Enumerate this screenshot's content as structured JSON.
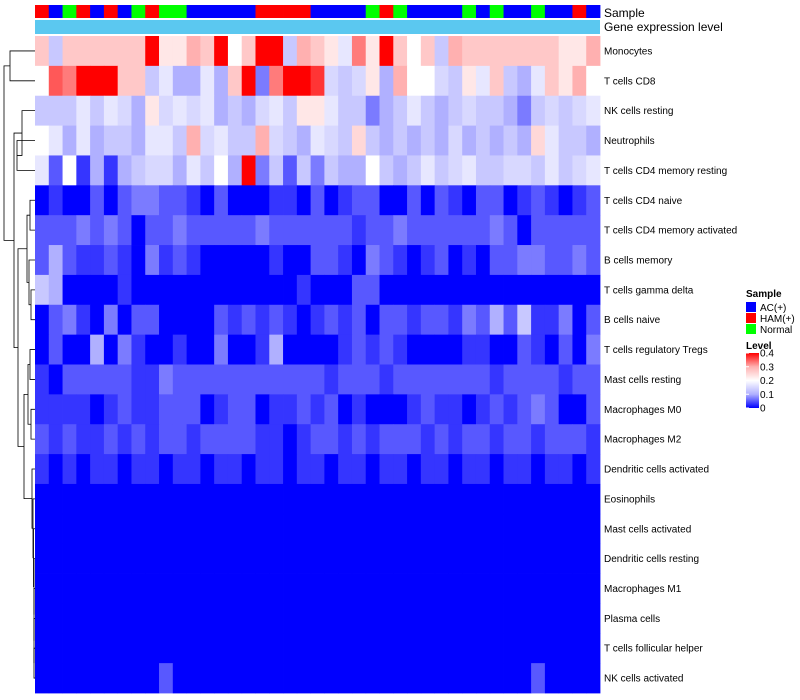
{
  "chart_data": {
    "type": "heatmap",
    "title": "",
    "column_annotation": {
      "label": "Sample",
      "groups": [
        "AC(+)",
        "HAM(+)",
        "Normal"
      ],
      "colors": {
        "AC(+)": "#0000ff",
        "HAM(+)": "#ff0000",
        "Normal": "#00ff00"
      },
      "values": [
        "HAM(+)",
        "AC(+)",
        "Normal",
        "HAM(+)",
        "AC(+)",
        "HAM(+)",
        "AC(+)",
        "Normal",
        "HAM(+)",
        "Normal",
        "Normal",
        "AC(+)",
        "AC(+)",
        "AC(+)",
        "AC(+)",
        "AC(+)",
        "HAM(+)",
        "HAM(+)",
        "HAM(+)",
        "HAM(+)",
        "AC(+)",
        "AC(+)",
        "AC(+)",
        "AC(+)",
        "Normal",
        "HAM(+)",
        "Normal",
        "AC(+)",
        "AC(+)",
        "AC(+)",
        "AC(+)",
        "Normal",
        "AC(+)",
        "Normal",
        "AC(+)",
        "AC(+)",
        "Normal",
        "AC(+)",
        "AC(+)",
        "HAM(+)",
        "AC(+)"
      ]
    },
    "gene_track_label": "Gene expression level",
    "gene_track_color": "#5bc8f0",
    "rows": [
      "Monocytes",
      "T cells CD8",
      "NK cells resting",
      "Neutrophils",
      "T cells CD4 memory resting",
      "T cells CD4 naive",
      "T cells CD4 memory activated",
      "B cells memory",
      "T cells gamma delta",
      "B cells naive",
      "T cells regulatory  Tregs",
      "Mast cells resting",
      "Macrophages M0",
      "Macrophages M2",
      "Dendritic cells activated",
      "Eosinophils",
      "Mast cells activated",
      "Dendritic cells resting",
      "Macrophages M1",
      "Plasma cells",
      "T cells follicular helper",
      "NK cells activated"
    ],
    "values": [
      [
        0.27,
        0.13,
        0.27,
        0.27,
        0.27,
        0.27,
        0.27,
        0.27,
        0.4,
        0.23,
        0.23,
        0.3,
        0.27,
        0.4,
        0.2,
        0.27,
        0.4,
        0.4,
        0.13,
        0.3,
        0.27,
        0.23,
        0.17,
        0.33,
        0.23,
        0.4,
        0.27,
        0.2,
        0.27,
        0.13,
        0.3,
        0.27,
        0.27,
        0.27,
        0.27,
        0.27,
        0.27,
        0.27,
        0.23,
        0.23,
        0.3
      ],
      [
        0.2,
        0.35,
        0.33,
        0.4,
        0.4,
        0.4,
        0.27,
        0.27,
        0.13,
        0.17,
        0.1,
        0.1,
        0.17,
        0.1,
        0.27,
        0.4,
        0.07,
        0.33,
        0.4,
        0.4,
        0.37,
        0.15,
        0.13,
        0.15,
        0.23,
        0.1,
        0.3,
        0.2,
        0.2,
        0.15,
        0.13,
        0.23,
        0.17,
        0.27,
        0.13,
        0.1,
        0.17,
        0.27,
        0.23,
        0.3,
        0.2
      ],
      [
        0.13,
        0.13,
        0.13,
        0.17,
        0.13,
        0.17,
        0.15,
        0.1,
        0.23,
        0.15,
        0.17,
        0.15,
        0.17,
        0.1,
        0.13,
        0.1,
        0.15,
        0.17,
        0.13,
        0.23,
        0.23,
        0.17,
        0.13,
        0.13,
        0.07,
        0.1,
        0.13,
        0.17,
        0.13,
        0.1,
        0.13,
        0.15,
        0.13,
        0.13,
        0.1,
        0.07,
        0.13,
        0.15,
        0.13,
        0.15,
        0.17
      ],
      [
        0.2,
        0.17,
        0.1,
        0.17,
        0.1,
        0.13,
        0.13,
        0.1,
        0.17,
        0.17,
        0.13,
        0.3,
        0.15,
        0.17,
        0.13,
        0.13,
        0.3,
        0.15,
        0.13,
        0.1,
        0.17,
        0.15,
        0.13,
        0.25,
        0.13,
        0.1,
        0.13,
        0.1,
        0.13,
        0.1,
        0.15,
        0.1,
        0.13,
        0.1,
        0.13,
        0.1,
        0.25,
        0.17,
        0.13,
        0.13,
        0.1
      ],
      [
        0.17,
        0.05,
        0.2,
        0.03,
        0.1,
        0.03,
        0.1,
        0.13,
        0.15,
        0.15,
        0.1,
        0.17,
        0.13,
        0.2,
        0.1,
        0.4,
        0.07,
        0.13,
        0.05,
        0.13,
        0.07,
        0.13,
        0.1,
        0.1,
        0.2,
        0.13,
        0.1,
        0.13,
        0.17,
        0.13,
        0.15,
        0.17,
        0.13,
        0.13,
        0.15,
        0.15,
        0.13,
        0.17,
        0.13,
        0.15,
        0.17
      ],
      [
        0.0,
        0.03,
        0.0,
        0.0,
        0.05,
        0.0,
        0.05,
        0.07,
        0.07,
        0.05,
        0.05,
        0.03,
        0.0,
        0.05,
        0.0,
        0.0,
        0.0,
        0.03,
        0.03,
        0.0,
        0.05,
        0.0,
        0.03,
        0.05,
        0.05,
        0.0,
        0.0,
        0.05,
        0.0,
        0.05,
        0.03,
        0.0,
        0.05,
        0.05,
        0.0,
        0.03,
        0.05,
        0.03,
        0.0,
        0.03,
        0.05
      ],
      [
        0.05,
        0.05,
        0.05,
        0.07,
        0.05,
        0.07,
        0.05,
        0.0,
        0.05,
        0.05,
        0.07,
        0.05,
        0.05,
        0.05,
        0.05,
        0.05,
        0.07,
        0.05,
        0.05,
        0.05,
        0.05,
        0.05,
        0.05,
        0.03,
        0.05,
        0.05,
        0.07,
        0.05,
        0.05,
        0.05,
        0.05,
        0.05,
        0.05,
        0.07,
        0.05,
        0.0,
        0.05,
        0.05,
        0.05,
        0.05,
        0.05
      ],
      [
        0.05,
        0.1,
        0.05,
        0.03,
        0.03,
        0.05,
        0.03,
        0.0,
        0.07,
        0.03,
        0.05,
        0.03,
        0.0,
        0.0,
        0.0,
        0.0,
        0.0,
        0.03,
        0.0,
        0.0,
        0.05,
        0.05,
        0.03,
        0.0,
        0.07,
        0.05,
        0.03,
        0.0,
        0.03,
        0.05,
        0.0,
        0.03,
        0.0,
        0.05,
        0.05,
        0.07,
        0.07,
        0.05,
        0.05,
        0.07,
        0.05
      ],
      [
        0.13,
        0.1,
        0.0,
        0.0,
        0.0,
        0.0,
        0.03,
        0.0,
        0.0,
        0.0,
        0.0,
        0.0,
        0.0,
        0.0,
        0.0,
        0.0,
        0.0,
        0.0,
        0.0,
        0.03,
        0.0,
        0.0,
        0.0,
        0.05,
        0.05,
        0.0,
        0.0,
        0.0,
        0.0,
        0.0,
        0.0,
        0.0,
        0.0,
        0.0,
        0.0,
        0.0,
        0.0,
        0.0,
        0.0,
        0.0,
        0.0
      ],
      [
        0.0,
        0.05,
        0.07,
        0.03,
        0.0,
        0.07,
        0.0,
        0.05,
        0.05,
        0.0,
        0.0,
        0.0,
        0.0,
        0.05,
        0.03,
        0.05,
        0.03,
        0.05,
        0.03,
        0.0,
        0.03,
        0.05,
        0.03,
        0.05,
        0.0,
        0.05,
        0.05,
        0.03,
        0.05,
        0.05,
        0.03,
        0.07,
        0.05,
        0.1,
        0.05,
        0.13,
        0.03,
        0.03,
        0.07,
        0.0,
        0.05
      ],
      [
        0.0,
        0.05,
        0.0,
        0.0,
        0.1,
        0.0,
        0.07,
        0.03,
        0.0,
        0.0,
        0.03,
        0.0,
        0.0,
        0.07,
        0.0,
        0.0,
        0.03,
        0.1,
        0.0,
        0.0,
        0.0,
        0.0,
        0.03,
        0.05,
        0.03,
        0.05,
        0.03,
        0.0,
        0.0,
        0.0,
        0.0,
        0.03,
        0.03,
        0.0,
        0.0,
        0.05,
        0.03,
        0.0,
        0.05,
        0.0,
        0.07
      ],
      [
        0.03,
        0.0,
        0.05,
        0.05,
        0.05,
        0.05,
        0.05,
        0.03,
        0.03,
        0.07,
        0.05,
        0.05,
        0.05,
        0.05,
        0.05,
        0.05,
        0.05,
        0.05,
        0.05,
        0.05,
        0.05,
        0.03,
        0.05,
        0.05,
        0.05,
        0.03,
        0.05,
        0.05,
        0.05,
        0.05,
        0.05,
        0.05,
        0.05,
        0.03,
        0.05,
        0.05,
        0.05,
        0.05,
        0.03,
        0.05,
        0.05
      ],
      [
        0.03,
        0.03,
        0.03,
        0.03,
        0.0,
        0.03,
        0.05,
        0.03,
        0.03,
        0.05,
        0.05,
        0.05,
        0.0,
        0.03,
        0.05,
        0.05,
        0.0,
        0.03,
        0.03,
        0.05,
        0.03,
        0.05,
        0.0,
        0.03,
        0.0,
        0.0,
        0.0,
        0.03,
        0.05,
        0.03,
        0.03,
        0.0,
        0.03,
        0.05,
        0.03,
        0.05,
        0.07,
        0.05,
        0.0,
        0.0,
        0.05
      ],
      [
        0.05,
        0.03,
        0.05,
        0.03,
        0.03,
        0.05,
        0.03,
        0.05,
        0.03,
        0.05,
        0.05,
        0.03,
        0.05,
        0.05,
        0.05,
        0.05,
        0.03,
        0.03,
        0.0,
        0.03,
        0.05,
        0.05,
        0.03,
        0.05,
        0.03,
        0.05,
        0.05,
        0.05,
        0.03,
        0.05,
        0.03,
        0.05,
        0.05,
        0.03,
        0.05,
        0.05,
        0.03,
        0.05,
        0.05,
        0.05,
        0.03
      ],
      [
        0.03,
        0.0,
        0.03,
        0.0,
        0.03,
        0.03,
        0.0,
        0.03,
        0.03,
        0.0,
        0.03,
        0.03,
        0.0,
        0.03,
        0.03,
        0.0,
        0.03,
        0.03,
        0.0,
        0.03,
        0.03,
        0.0,
        0.03,
        0.03,
        0.0,
        0.03,
        0.03,
        0.0,
        0.03,
        0.03,
        0.0,
        0.03,
        0.03,
        0.0,
        0.03,
        0.03,
        0.0,
        0.03,
        0.03,
        0.0,
        0.03
      ],
      [
        0,
        0,
        0,
        0,
        0,
        0,
        0,
        0,
        0,
        0,
        0,
        0,
        0,
        0,
        0,
        0,
        0,
        0,
        0,
        0,
        0,
        0,
        0,
        0,
        0,
        0,
        0,
        0,
        0,
        0,
        0,
        0,
        0,
        0,
        0,
        0,
        0,
        0,
        0,
        0,
        0
      ],
      [
        0,
        0,
        0,
        0,
        0,
        0,
        0,
        0,
        0,
        0,
        0,
        0,
        0,
        0,
        0,
        0,
        0,
        0,
        0,
        0,
        0,
        0,
        0,
        0,
        0,
        0,
        0,
        0,
        0,
        0,
        0,
        0,
        0,
        0,
        0,
        0,
        0,
        0,
        0,
        0,
        0
      ],
      [
        0,
        0,
        0,
        0,
        0,
        0,
        0,
        0,
        0,
        0,
        0,
        0,
        0,
        0,
        0,
        0,
        0,
        0,
        0,
        0,
        0,
        0,
        0,
        0,
        0,
        0,
        0,
        0,
        0,
        0,
        0,
        0,
        0,
        0,
        0,
        0,
        0,
        0,
        0,
        0,
        0
      ],
      [
        0,
        0,
        0,
        0,
        0,
        0,
        0,
        0,
        0,
        0,
        0,
        0,
        0,
        0,
        0,
        0,
        0,
        0,
        0,
        0,
        0,
        0,
        0,
        0,
        0,
        0,
        0,
        0,
        0,
        0,
        0,
        0,
        0,
        0,
        0,
        0,
        0,
        0,
        0,
        0,
        0
      ],
      [
        0,
        0,
        0,
        0,
        0,
        0,
        0,
        0,
        0,
        0,
        0,
        0,
        0,
        0,
        0,
        0,
        0,
        0,
        0,
        0,
        0,
        0,
        0,
        0,
        0,
        0,
        0,
        0,
        0,
        0,
        0,
        0,
        0,
        0,
        0,
        0,
        0,
        0,
        0,
        0,
        0
      ],
      [
        0,
        0,
        0,
        0,
        0,
        0,
        0,
        0,
        0,
        0,
        0,
        0,
        0,
        0,
        0,
        0,
        0,
        0,
        0,
        0,
        0,
        0,
        0,
        0,
        0,
        0,
        0,
        0,
        0,
        0,
        0,
        0,
        0,
        0,
        0,
        0,
        0,
        0,
        0,
        0,
        0
      ],
      [
        0,
        0,
        0,
        0,
        0,
        0,
        0,
        0,
        0,
        0.05,
        0,
        0,
        0,
        0,
        0,
        0,
        0,
        0,
        0,
        0,
        0,
        0,
        0,
        0,
        0,
        0,
        0,
        0,
        0,
        0,
        0,
        0,
        0,
        0,
        0,
        0,
        0.05,
        0,
        0,
        0,
        0
      ]
    ],
    "color_scale": {
      "title": "Level",
      "min": 0,
      "max": 0.4,
      "ticks": [
        "0",
        "0.1",
        "0.2",
        "0.3",
        "0.4"
      ],
      "colors": [
        "#0000ff",
        "#b0b0ff",
        "#ffffff",
        "#ffb0b0",
        "#ff0000"
      ]
    },
    "legend_placement": "right",
    "dendrogram": "rows"
  }
}
